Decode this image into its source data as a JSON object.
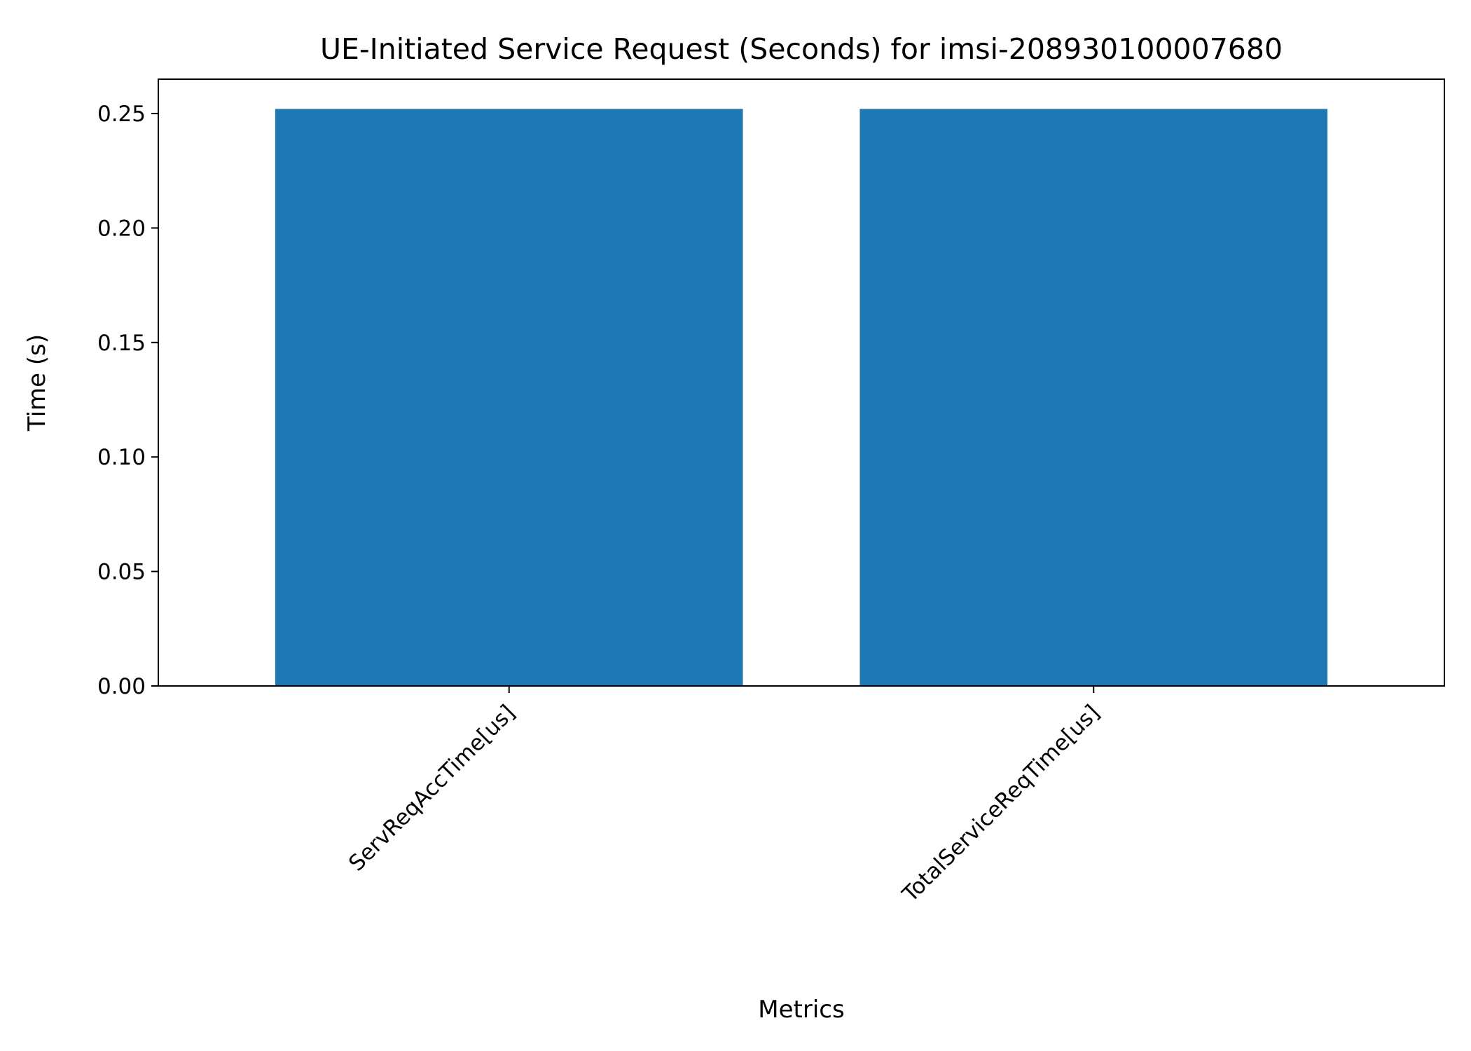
{
  "chart_data": {
    "type": "bar",
    "title": "UE-Initiated Service Request (Seconds) for imsi-208930100007680",
    "xlabel": "Metrics",
    "ylabel": "Time (s)",
    "categories": [
      "ServReqAccTime[us]",
      "TotalServiceReqTime[us]"
    ],
    "values": [
      0.252,
      0.252
    ],
    "ylim": [
      0,
      0.265
    ],
    "yticks": [
      0.0,
      0.05,
      0.1,
      0.15,
      0.2,
      0.25
    ],
    "ytick_labels": [
      "0.00",
      "0.05",
      "0.10",
      "0.15",
      "0.20",
      "0.25"
    ],
    "bar_color": "#1f77b4",
    "grid": false,
    "legend": "none"
  }
}
